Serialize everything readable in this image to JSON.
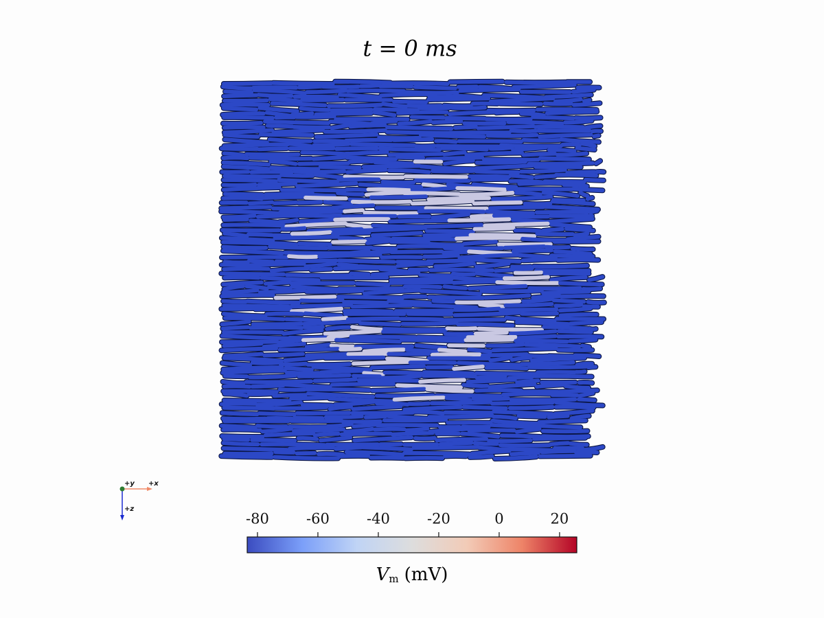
{
  "title": "t = 0 ms",
  "colorbar": {
    "label": {
      "symbol": "V",
      "subscript": "m",
      "unit": "(mV)"
    },
    "lim": [
      -83.4,
      25.7
    ],
    "ticks": [
      -80,
      -60,
      -40,
      -20,
      0,
      20
    ],
    "colormap": [
      "#3b4cc0",
      "#7b9ff9",
      "#c0d4f5",
      "#dddddd",
      "#f2cbb7",
      "#ee8468",
      "#b40426"
    ]
  },
  "axes_triad": {
    "y": "+y",
    "x": "+x",
    "z": "+z"
  }
}
